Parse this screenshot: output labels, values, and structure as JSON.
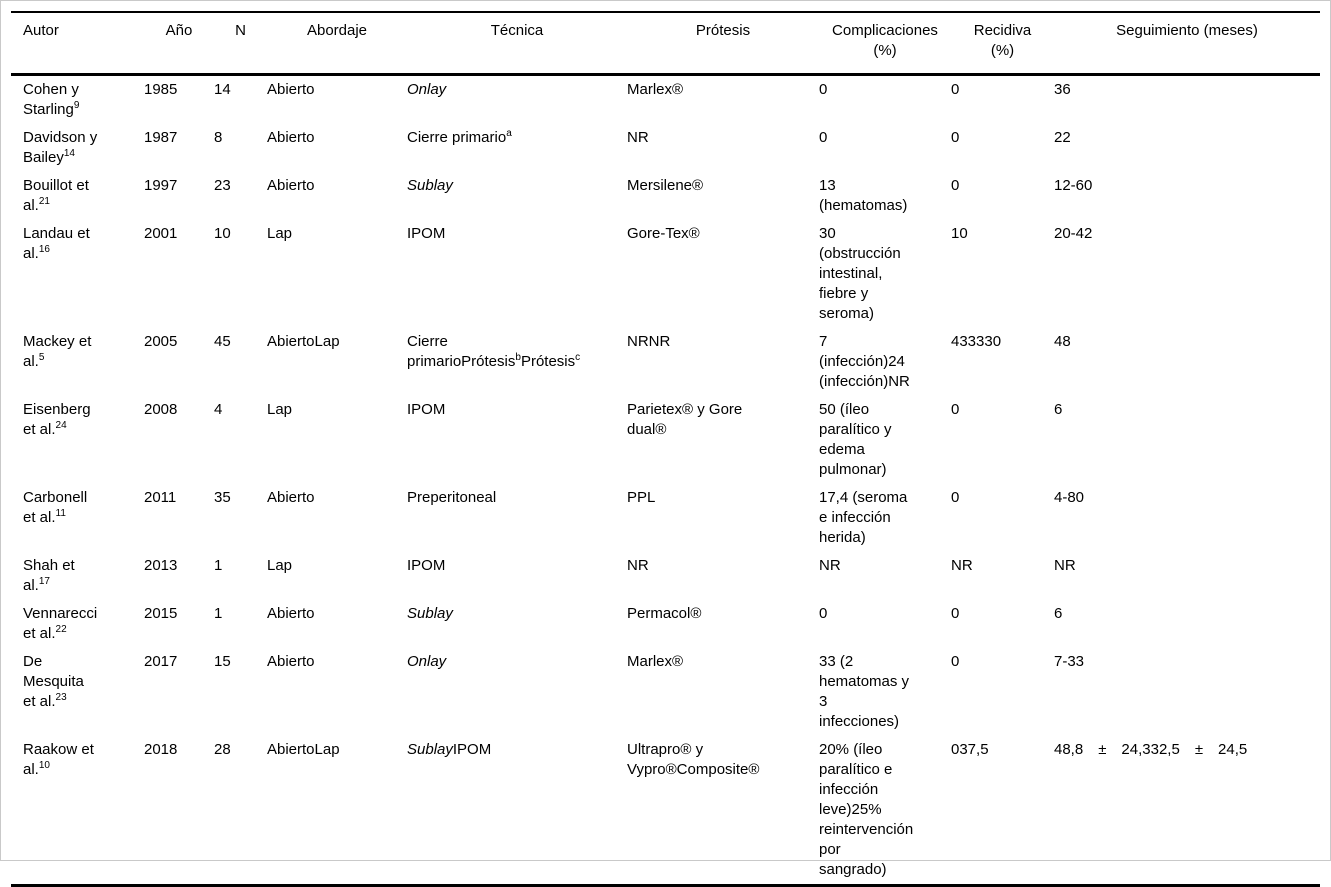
{
  "table": {
    "columns": [
      {
        "label": "Autor"
      },
      {
        "label": "Año"
      },
      {
        "label": "N"
      },
      {
        "label": "Abordaje"
      },
      {
        "label": "Técnica"
      },
      {
        "label": "Prótesis"
      },
      {
        "label": "Complicaciones\n(%)"
      },
      {
        "label": "Recidiva\n(%)"
      },
      {
        "label": "Seguimiento (meses)"
      }
    ],
    "rows": [
      [
        [
          {
            "t": "Cohen y\nStarling"
          },
          {
            "t": "9",
            "sup": true
          }
        ],
        [
          {
            "t": "1985"
          }
        ],
        [
          {
            "t": "14"
          }
        ],
        [
          {
            "t": "Abierto"
          }
        ],
        [
          {
            "t": "Onlay",
            "i": true
          }
        ],
        [
          {
            "t": "Marlex®"
          }
        ],
        [
          {
            "t": "0"
          }
        ],
        [
          {
            "t": "0"
          }
        ],
        [
          {
            "t": "36"
          }
        ]
      ],
      [
        [
          {
            "t": "Davidson y\nBailey"
          },
          {
            "t": "14",
            "sup": true
          }
        ],
        [
          {
            "t": "1987"
          }
        ],
        [
          {
            "t": "8"
          }
        ],
        [
          {
            "t": "Abierto"
          }
        ],
        [
          {
            "t": "Cierre primario"
          },
          {
            "t": "a",
            "sup": true
          }
        ],
        [
          {
            "t": "NR"
          }
        ],
        [
          {
            "t": "0"
          }
        ],
        [
          {
            "t": "0"
          }
        ],
        [
          {
            "t": "22"
          }
        ]
      ],
      [
        [
          {
            "t": "Bouillot et\nal."
          },
          {
            "t": "21",
            "sup": true
          }
        ],
        [
          {
            "t": "1997"
          }
        ],
        [
          {
            "t": "23"
          }
        ],
        [
          {
            "t": "Abierto"
          }
        ],
        [
          {
            "t": "Sublay",
            "i": true
          }
        ],
        [
          {
            "t": "Mersilene®"
          }
        ],
        [
          {
            "t": "13\n(hematomas)"
          }
        ],
        [
          {
            "t": "0"
          }
        ],
        [
          {
            "t": "12-60"
          }
        ]
      ],
      [
        [
          {
            "t": "Landau et\nal."
          },
          {
            "t": "16",
            "sup": true
          }
        ],
        [
          {
            "t": "2001"
          }
        ],
        [
          {
            "t": "10"
          }
        ],
        [
          {
            "t": "Lap"
          }
        ],
        [
          {
            "t": "IPOM"
          }
        ],
        [
          {
            "t": "Gore-Tex®"
          }
        ],
        [
          {
            "t": "30\n(obstrucción\nintestinal,\nfiebre y\nseroma)"
          }
        ],
        [
          {
            "t": "10"
          }
        ],
        [
          {
            "t": "20-42"
          }
        ]
      ],
      [
        [
          {
            "t": "Mackey et\nal."
          },
          {
            "t": "5",
            "sup": true
          }
        ],
        [
          {
            "t": "2005"
          }
        ],
        [
          {
            "t": "45"
          }
        ],
        [
          {
            "t": "AbiertoLap"
          }
        ],
        [
          {
            "t": "Cierre\nprimarioPrótesis"
          },
          {
            "t": "b",
            "sup": true
          },
          {
            "t": "Prótesis"
          },
          {
            "t": "c",
            "sup": true
          }
        ],
        [
          {
            "t": "NRNR"
          }
        ],
        [
          {
            "t": "7\n(infección)24\n(infección)NR"
          }
        ],
        [
          {
            "t": "433330"
          }
        ],
        [
          {
            "t": "48"
          }
        ]
      ],
      [
        [
          {
            "t": "Eisenberg\net al."
          },
          {
            "t": "24",
            "sup": true
          }
        ],
        [
          {
            "t": "2008"
          }
        ],
        [
          {
            "t": "4"
          }
        ],
        [
          {
            "t": "Lap"
          }
        ],
        [
          {
            "t": "IPOM"
          }
        ],
        [
          {
            "t": "Parietex® y Gore\ndual®"
          }
        ],
        [
          {
            "t": "50 (íleo\nparalítico y\nedema\npulmonar)"
          }
        ],
        [
          {
            "t": "0"
          }
        ],
        [
          {
            "t": "6"
          }
        ]
      ],
      [
        [
          {
            "t": "Carbonell\net al."
          },
          {
            "t": "11",
            "sup": true
          }
        ],
        [
          {
            "t": "2011"
          }
        ],
        [
          {
            "t": "35"
          }
        ],
        [
          {
            "t": "Abierto"
          }
        ],
        [
          {
            "t": "Preperitoneal"
          }
        ],
        [
          {
            "t": "PPL"
          }
        ],
        [
          {
            "t": "17,4 (seroma\ne infección\nherida)"
          }
        ],
        [
          {
            "t": "0"
          }
        ],
        [
          {
            "t": "4-80"
          }
        ]
      ],
      [
        [
          {
            "t": "Shah et\nal."
          },
          {
            "t": "17",
            "sup": true
          }
        ],
        [
          {
            "t": "2013"
          }
        ],
        [
          {
            "t": "1"
          }
        ],
        [
          {
            "t": "Lap"
          }
        ],
        [
          {
            "t": "IPOM"
          }
        ],
        [
          {
            "t": "NR"
          }
        ],
        [
          {
            "t": "NR"
          }
        ],
        [
          {
            "t": "NR"
          }
        ],
        [
          {
            "t": "NR"
          }
        ]
      ],
      [
        [
          {
            "t": "Vennarecci\net al."
          },
          {
            "t": "22",
            "sup": true
          }
        ],
        [
          {
            "t": "2015"
          }
        ],
        [
          {
            "t": "1"
          }
        ],
        [
          {
            "t": "Abierto"
          }
        ],
        [
          {
            "t": "Sublay",
            "i": true
          }
        ],
        [
          {
            "t": "Permacol®"
          }
        ],
        [
          {
            "t": "0"
          }
        ],
        [
          {
            "t": "0"
          }
        ],
        [
          {
            "t": "6"
          }
        ]
      ],
      [
        [
          {
            "t": "De\nMesquita\net al."
          },
          {
            "t": "23",
            "sup": true
          }
        ],
        [
          {
            "t": "2017"
          }
        ],
        [
          {
            "t": "15"
          }
        ],
        [
          {
            "t": "Abierto"
          }
        ],
        [
          {
            "t": "Onlay",
            "i": true
          }
        ],
        [
          {
            "t": "Marlex®"
          }
        ],
        [
          {
            "t": "33 (2\nhematomas y\n3\ninfecciones)"
          }
        ],
        [
          {
            "t": "0"
          }
        ],
        [
          {
            "t": "7-33"
          }
        ]
      ],
      [
        [
          {
            "t": "Raakow et\nal."
          },
          {
            "t": "10",
            "sup": true
          }
        ],
        [
          {
            "t": "2018"
          }
        ],
        [
          {
            "t": "28"
          }
        ],
        [
          {
            "t": "AbiertoLap"
          }
        ],
        [
          {
            "t": "Sublay",
            "i": true
          },
          {
            "t": "IPOM"
          }
        ],
        [
          {
            "t": "Ultrapro® y\nVypro®Composite®"
          }
        ],
        [
          {
            "t": "20% (íleo\nparalítico e\ninfección\nleve)25%\nreintervención\npor\nsangrado)"
          }
        ],
        [
          {
            "t": "037,5"
          }
        ],
        [
          {
            "t": "48,8 ± 24,332,5 ± 24,5"
          }
        ]
      ]
    ]
  }
}
